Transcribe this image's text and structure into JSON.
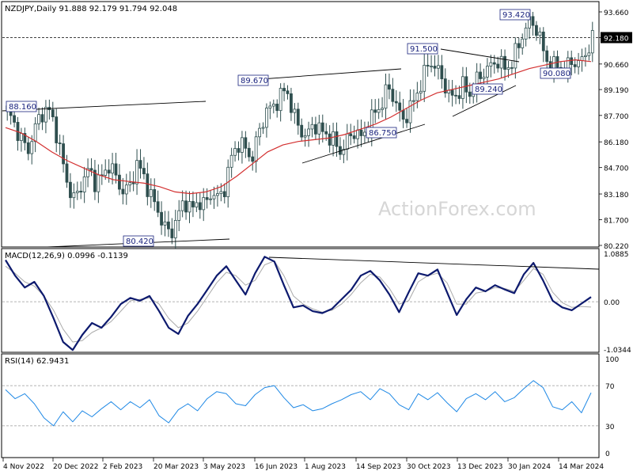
{
  "chart_data": [
    {
      "type": "candlestick",
      "panel": "price",
      "symbol_line": "NZDJPY,Daily  91.888 92.179 91.794 92.048",
      "ohlc": {
        "open": 91.888,
        "high": 92.179,
        "low": 91.794,
        "close": 92.048
      },
      "watermark": "ActionForex.com",
      "y_ticks": [
        "93.660",
        "92.180",
        "90.660",
        "89.190",
        "87.700",
        "86.180",
        "84.700",
        "83.180",
        "81.700",
        "80.220"
      ],
      "y_range": [
        80.22,
        93.66
      ],
      "current_price": "92.180",
      "x_ticks": [
        "4 Nov 2022",
        "20 Dec 2022",
        "2 Feb 2023",
        "20 Mar 2023",
        "3 May 2023",
        "16 Jun 2023",
        "1 Aug 2023",
        "14 Sep 2023",
        "30 Oct 2023",
        "13 Dec 2023",
        "30 Jan 2024",
        "14 Mar 2024"
      ],
      "annotations": [
        "88.160",
        "80.420",
        "89.670",
        "86.750",
        "91.500",
        "89.240",
        "93.420",
        "90.080"
      ],
      "close_series": [
        88.0,
        87.2,
        86.4,
        85.6,
        86.9,
        87.8,
        88.1,
        87.1,
        85.2,
        83.5,
        82.8,
        83.9,
        84.6,
        83.8,
        84.2,
        84.9,
        84.1,
        83.3,
        83.6,
        84.9,
        84.3,
        83.1,
        82.4,
        81.3,
        80.9,
        81.8,
        82.9,
        82.2,
        82.8,
        82.5,
        83.3,
        82.9,
        83.6,
        85.4,
        86.1,
        85.8,
        85.2,
        86.8,
        87.9,
        88.2,
        88.7,
        89.3,
        87.8,
        86.9,
        86.4,
        87.3,
        86.8,
        86.6,
        86.2,
        85.6,
        86.3,
        86.8,
        86.4,
        87.0,
        87.9,
        88.3,
        89.4,
        88.5,
        87.4,
        87.9,
        88.8,
        89.7,
        90.9,
        90.4,
        89.8,
        88.7,
        88.9,
        89.4,
        88.9,
        89.7,
        90.2,
        90.5,
        90.9,
        90.4,
        90.6,
        91.6,
        92.6,
        93.2,
        92.5,
        91.1,
        90.4,
        90.7,
        90.3,
        90.9,
        90.6,
        91.3,
        92.05
      ],
      "ma_series": [
        87.0,
        86.7,
        86.2,
        85.6,
        85.1,
        84.7,
        84.3,
        84.0,
        83.9,
        83.8,
        83.6,
        83.3,
        83.2,
        83.3,
        83.6,
        84.2,
        84.9,
        85.6,
        86.0,
        86.2,
        86.3,
        86.4,
        86.6,
        86.9,
        87.2,
        87.6,
        88.1,
        88.6,
        89.0,
        89.2,
        89.4,
        89.6,
        89.8,
        90.1,
        90.4,
        90.6,
        90.8,
        90.9,
        90.8
      ]
    },
    {
      "type": "line",
      "panel": "macd",
      "title": "MACD(12,26,9) 0.0996 -0.1139",
      "y_ticks": [
        "1.0885",
        "0.00",
        "-1.0344"
      ],
      "y_range": [
        -1.0344,
        1.0885
      ],
      "macd": [
        0.88,
        0.55,
        0.3,
        0.42,
        0.12,
        -0.35,
        -0.85,
        -1.02,
        -0.7,
        -0.45,
        -0.55,
        -0.32,
        -0.05,
        0.08,
        0.02,
        0.12,
        -0.2,
        -0.55,
        -0.68,
        -0.3,
        -0.05,
        0.25,
        0.55,
        0.75,
        0.45,
        0.15,
        0.6,
        0.95,
        0.85,
        0.35,
        -0.12,
        -0.08,
        -0.2,
        -0.24,
        -0.15,
        0.05,
        0.25,
        0.55,
        0.65,
        0.45,
        0.15,
        -0.22,
        0.2,
        0.6,
        0.55,
        0.68,
        0.2,
        -0.28,
        0.05,
        0.3,
        0.22,
        0.35,
        0.26,
        0.18,
        0.58,
        0.82,
        0.45,
        0.02,
        -0.12,
        -0.18,
        -0.04,
        0.0996
      ],
      "signal": [
        0.75,
        0.6,
        0.42,
        0.33,
        0.12,
        -0.18,
        -0.58,
        -0.85,
        -0.82,
        -0.65,
        -0.55,
        -0.42,
        -0.2,
        0.02,
        0.05,
        0.08,
        -0.05,
        -0.35,
        -0.55,
        -0.45,
        -0.2,
        0.1,
        0.4,
        0.62,
        0.55,
        0.35,
        0.45,
        0.78,
        0.86,
        0.55,
        0.12,
        -0.05,
        -0.15,
        -0.22,
        -0.18,
        -0.05,
        0.15,
        0.4,
        0.58,
        0.52,
        0.28,
        -0.05,
        0.02,
        0.42,
        0.55,
        0.6,
        0.4,
        -0.05,
        -0.05,
        0.18,
        0.22,
        0.3,
        0.28,
        0.22,
        0.45,
        0.7,
        0.58,
        0.2,
        -0.02,
        -0.12,
        -0.1,
        -0.1139
      ]
    },
    {
      "type": "line",
      "panel": "rsi",
      "title": "RSI(14) 62.9431",
      "y_ticks": [
        "100",
        "70",
        "30",
        "0"
      ],
      "y_range": [
        0,
        100
      ],
      "levels": [
        70,
        30
      ],
      "values": [
        66,
        57,
        62,
        52,
        38,
        30,
        44,
        34,
        45,
        39,
        47,
        54,
        46,
        54,
        48,
        56,
        40,
        33,
        46,
        52,
        45,
        57,
        64,
        62,
        52,
        50,
        61,
        68,
        70,
        58,
        48,
        51,
        45,
        47,
        52,
        56,
        61,
        64,
        56,
        67,
        62,
        51,
        46,
        62,
        56,
        63,
        53,
        44,
        57,
        62,
        56,
        64,
        54,
        58,
        67,
        75,
        68,
        49,
        46,
        54,
        43,
        62.9
      ]
    }
  ]
}
